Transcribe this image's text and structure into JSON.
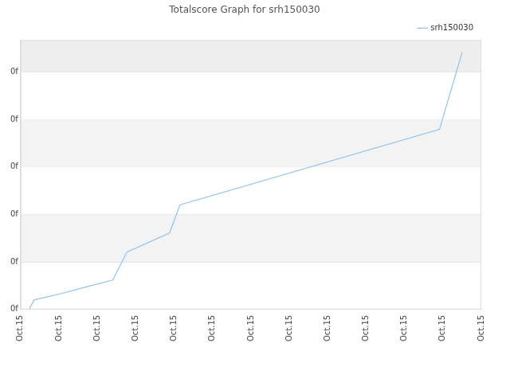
{
  "chart_data": {
    "type": "line",
    "title": "Totalscore Graph for srh150030",
    "x": [
      0.22,
      0.35,
      1.09,
      1.64,
      2.4,
      2.77,
      3.88,
      4.15,
      10.91,
      11.5
    ],
    "series": [
      {
        "name": "srh150030",
        "color": "#8ec3ee",
        "values": [
          0,
          0.2,
          0.34,
          0.46,
          0.62,
          1.21,
          1.61,
          2.2,
          3.79,
          5.41
        ]
      }
    ],
    "xlim": [
      0,
      12
    ],
    "xticks": [
      {
        "value": 0,
        "label": "Oct.15"
      },
      {
        "value": 1,
        "label": "Oct.15"
      },
      {
        "value": 2,
        "label": "Oct.15"
      },
      {
        "value": 3,
        "label": "Oct.15"
      },
      {
        "value": 4,
        "label": "Oct.15"
      },
      {
        "value": 5,
        "label": "Oct.15"
      },
      {
        "value": 6,
        "label": "Oct.15"
      },
      {
        "value": 7,
        "label": "Oct.15"
      },
      {
        "value": 8,
        "label": "Oct.15"
      },
      {
        "value": 9,
        "label": "Oct.15"
      },
      {
        "value": 10,
        "label": "Oct.15"
      },
      {
        "value": 11,
        "label": "Oct.15"
      },
      {
        "value": 12,
        "label": "Oct.15"
      }
    ],
    "ylim": [
      0,
      5.67
    ],
    "yticks": [
      {
        "value": 0,
        "label": "0f"
      },
      {
        "value": 1,
        "label": "0f"
      },
      {
        "value": 2,
        "label": "0f"
      },
      {
        "value": 3,
        "label": "0f"
      },
      {
        "value": 4,
        "label": "0f"
      },
      {
        "value": 5,
        "label": "0f"
      }
    ],
    "grid": true,
    "legend": "top-right",
    "marker": "none"
  }
}
